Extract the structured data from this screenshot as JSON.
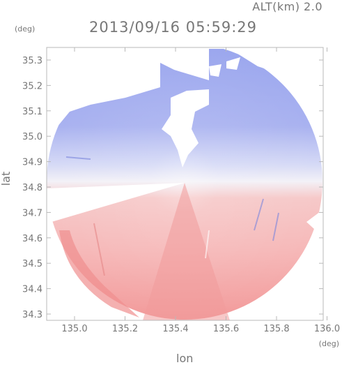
{
  "header": {
    "altitude": "ALT(km) 2.0",
    "timestamp": "2013/09/16 05:59:29"
  },
  "axes": {
    "y_unit": "(deg)",
    "x_unit": "(deg)",
    "y_label": "lat",
    "x_label": "lon",
    "x_ticks": [
      "135.0",
      "135.2",
      "135.4",
      "135.6",
      "135.8",
      "136.0"
    ],
    "y_ticks": [
      "35.3",
      "35.2",
      "35.1",
      "35.0",
      "34.9",
      "34.8",
      "34.7",
      "34.6",
      "34.5",
      "34.4",
      "34.3"
    ]
  },
  "colors": {
    "approaching": "#9aa6ee",
    "receding": "#f2a0a0",
    "axis": "#777777"
  }
}
